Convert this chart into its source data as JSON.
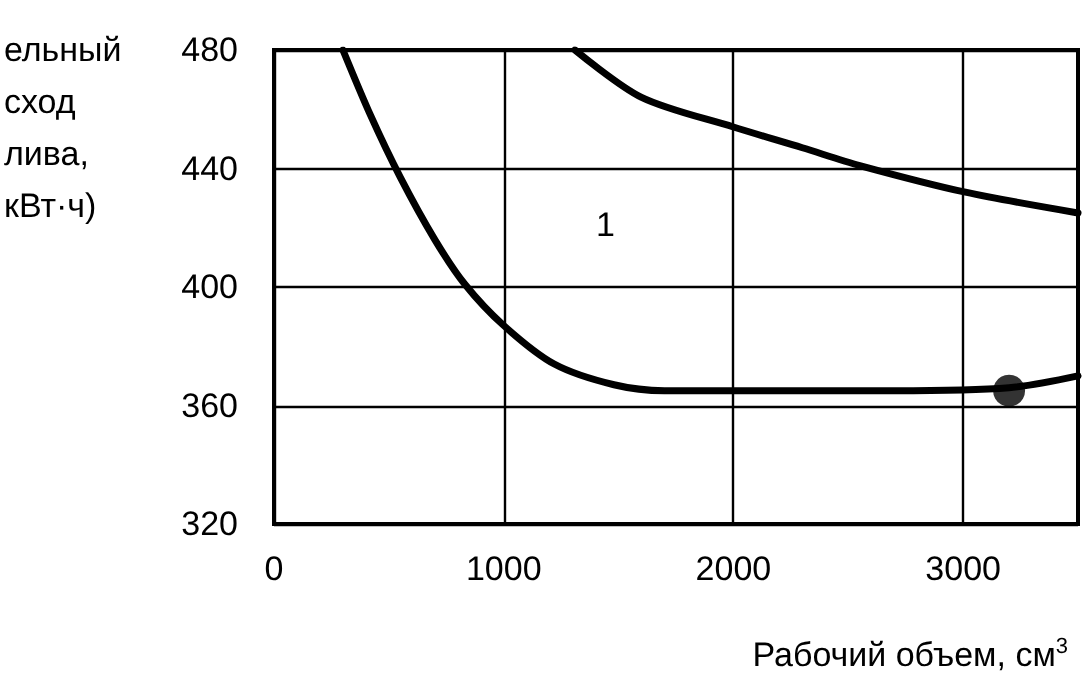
{
  "chart_data": {
    "type": "line",
    "xlabel": "Рабочий объем, см$^{3}$",
    "ylabel": "ельный\nсход\nлива,\nкВт·ч)",
    "xlim": [
      0,
      3500
    ],
    "xticks": [
      0,
      1000,
      2000,
      3000
    ],
    "ylim": [
      320,
      480
    ],
    "yticks": [
      320,
      360,
      400,
      440,
      480
    ],
    "grid": true,
    "marker": "none",
    "line_style": "solid",
    "annotations": [
      "1"
    ],
    "series": [
      {
        "color": "#000000",
        "x": [
          300,
          420,
          550,
          700,
          830,
          1000,
          1220,
          1480,
          1700,
          2200,
          2700,
          3200,
          3500
        ],
        "values": [
          480,
          458,
          437,
          416,
          401,
          387,
          374,
          367,
          365,
          365,
          365,
          366,
          370
        ]
      },
      {
        "color": "#000000",
        "x": [
          1310,
          1600,
          2000,
          2300,
          2550,
          3010,
          3500
        ],
        "values": [
          480,
          464,
          454,
          447,
          441,
          432,
          425
        ]
      },
      {
        "type": "scatter",
        "marker": "circle",
        "color": "#000000",
        "x": [
          3200
        ],
        "values": [
          365
        ]
      }
    ]
  }
}
